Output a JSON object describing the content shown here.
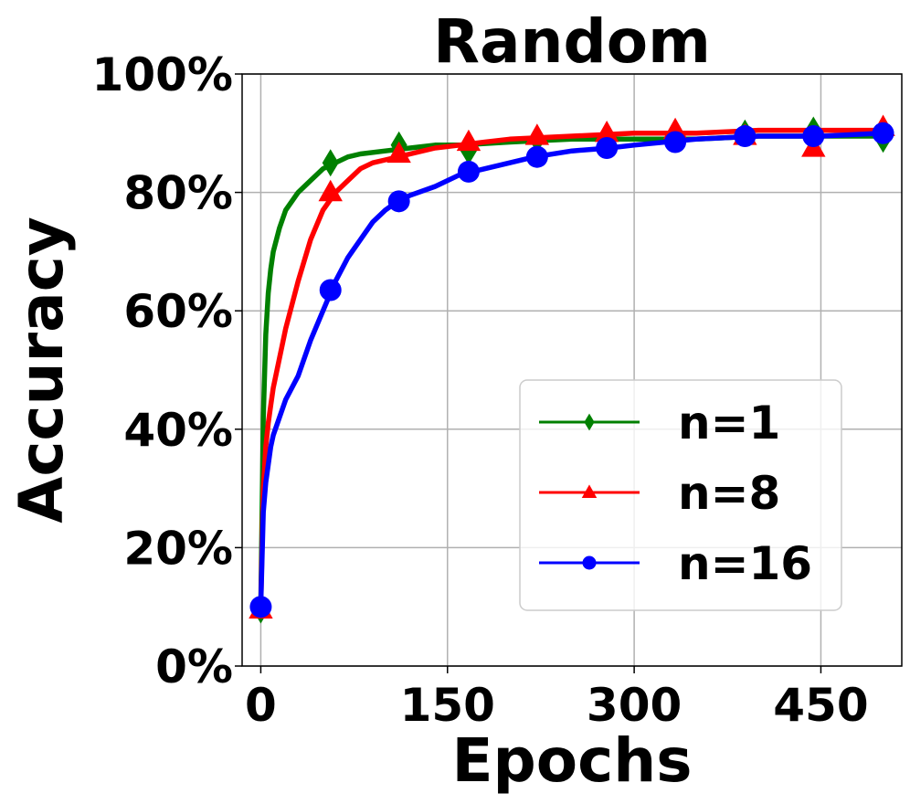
{
  "chart_data": {
    "type": "line",
    "title": "Random",
    "xlabel": "Epochs",
    "ylabel": "Accuracy",
    "xlim": [
      -15,
      515
    ],
    "ylim": [
      0,
      100
    ],
    "xticks": [
      0,
      150,
      300,
      450
    ],
    "xtick_labels": [
      "0",
      "150",
      "300",
      "450"
    ],
    "yticks": [
      0,
      20,
      40,
      60,
      80,
      100
    ],
    "ytick_labels": [
      "0%",
      "20%",
      "40%",
      "60%",
      "80%",
      "100%"
    ],
    "grid": true,
    "legend_position": "lower-right",
    "series": [
      {
        "name": "n=1",
        "color": "#008000",
        "marker": "diamond",
        "x": [
          0,
          2,
          4,
          6,
          8,
          10,
          15,
          20,
          30,
          40,
          50,
          60,
          70,
          80,
          100,
          120,
          140,
          160,
          200,
          250,
          300,
          350,
          400,
          450,
          500
        ],
        "y": [
          10,
          42,
          56,
          63,
          67,
          70,
          74,
          77,
          80,
          82,
          84,
          85,
          86,
          86.5,
          87,
          87.5,
          88,
          88,
          88.5,
          89,
          89,
          89,
          89.5,
          89.5,
          89.5
        ],
        "marker_x": [
          0,
          56,
          111,
          167,
          222,
          278,
          333,
          389,
          444,
          500
        ],
        "marker_y": [
          9.5,
          85,
          88,
          87,
          89,
          88,
          89,
          90,
          90.5,
          89
        ]
      },
      {
        "name": "n=8",
        "color": "#ff0000",
        "marker": "triangle",
        "x": [
          0,
          2,
          4,
          6,
          8,
          10,
          15,
          20,
          30,
          40,
          50,
          60,
          70,
          80,
          90,
          100,
          120,
          140,
          160,
          180,
          200,
          250,
          300,
          350,
          400,
          450,
          500
        ],
        "y": [
          10,
          30,
          37,
          41,
          44,
          47,
          52,
          57,
          65,
          72,
          77,
          80,
          82,
          84,
          85,
          85.5,
          86.5,
          87.5,
          88,
          88.5,
          89,
          89.5,
          90,
          90,
          90.5,
          90.5,
          90.5
        ],
        "marker_x": [
          0,
          56,
          111,
          167,
          222,
          278,
          333,
          389,
          444,
          500
        ],
        "marker_y": [
          9.5,
          80,
          86.5,
          88.5,
          89.5,
          90,
          90.5,
          89.5,
          87.5,
          91
        ]
      },
      {
        "name": "n=16",
        "color": "#0000ff",
        "marker": "circle",
        "x": [
          0,
          2,
          4,
          6,
          8,
          10,
          15,
          20,
          30,
          40,
          50,
          60,
          70,
          80,
          90,
          100,
          110,
          120,
          140,
          160,
          180,
          200,
          220,
          250,
          280,
          300,
          350,
          400,
          450,
          500
        ],
        "y": [
          10,
          26,
          31,
          34,
          37,
          39,
          42,
          45,
          49,
          55,
          60,
          65,
          69,
          72,
          75,
          77,
          78.5,
          79.5,
          81,
          83,
          84,
          85,
          86,
          87,
          87.5,
          88,
          89,
          89.5,
          89.5,
          90
        ],
        "marker_x": [
          0,
          56,
          111,
          167,
          222,
          278,
          333,
          389,
          444,
          500
        ],
        "marker_y": [
          10,
          63.5,
          78.5,
          83.5,
          86,
          87.5,
          88.5,
          89.5,
          89.5,
          90
        ]
      }
    ]
  }
}
